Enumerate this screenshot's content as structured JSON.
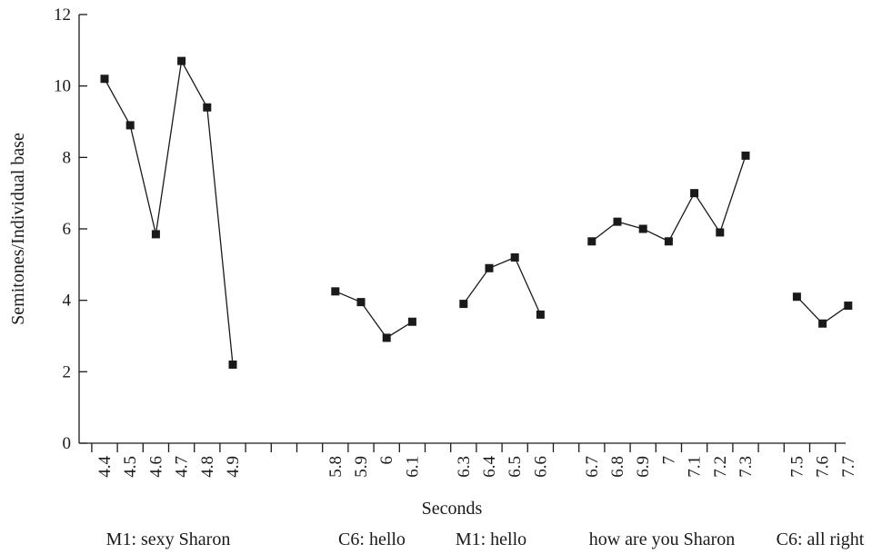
{
  "chart_data": {
    "type": "line",
    "xlabel": "Seconds",
    "ylabel": "Semitones/Individual base",
    "ylim": [
      0,
      12
    ],
    "yticks": [
      "0",
      "2",
      "4",
      "6",
      "8",
      "10",
      "12"
    ],
    "x_categories": [
      "4.4",
      "4.5",
      "4.6",
      "4.7",
      "4.8",
      "4.9",
      "",
      "",
      "",
      "5.8",
      "5.9",
      "6",
      "6.1",
      "",
      "6.3",
      "6.4",
      "6.5",
      "6.6",
      "",
      "6.7",
      "6.8",
      "6.9",
      "7",
      "7.1",
      "7.2",
      "7.3",
      "",
      "7.5",
      "7.6",
      "7.7"
    ],
    "segments": [
      {
        "points": [
          {
            "x": "4.4",
            "y": 10.2
          },
          {
            "x": "4.5",
            "y": 8.9
          },
          {
            "x": "4.6",
            "y": 5.85
          },
          {
            "x": "4.7",
            "y": 10.7
          },
          {
            "x": "4.8",
            "y": 9.4
          },
          {
            "x": "4.9",
            "y": 2.2
          }
        ]
      },
      {
        "points": [
          {
            "x": "5.8",
            "y": 4.25
          },
          {
            "x": "5.9",
            "y": 3.95
          },
          {
            "x": "6",
            "y": 2.95
          },
          {
            "x": "6.1",
            "y": 3.4
          }
        ]
      },
      {
        "points": [
          {
            "x": "6.3",
            "y": 3.9
          },
          {
            "x": "6.4",
            "y": 4.9
          },
          {
            "x": "6.5",
            "y": 5.2
          },
          {
            "x": "6.6",
            "y": 3.6
          }
        ]
      },
      {
        "points": [
          {
            "x": "6.7",
            "y": 5.65
          },
          {
            "x": "6.8",
            "y": 6.2
          },
          {
            "x": "6.9",
            "y": 6.0
          },
          {
            "x": "7",
            "y": 5.65
          },
          {
            "x": "7.1",
            "y": 7.0
          },
          {
            "x": "7.2",
            "y": 5.9
          },
          {
            "x": "7.3",
            "y": 8.05
          }
        ]
      },
      {
        "points": [
          {
            "x": "7.5",
            "y": 4.1
          },
          {
            "x": "7.6",
            "y": 3.35
          },
          {
            "x": "7.7",
            "y": 3.85
          }
        ]
      }
    ],
    "phrases": [
      {
        "text": "M1: sexy Sharon",
        "from": "4.4",
        "to": "4.9"
      },
      {
        "text": "C6: hello",
        "from": "5.8",
        "to": "6.1"
      },
      {
        "text": "M1: hello",
        "from": "6.3",
        "to": "6.6"
      },
      {
        "text": "how are you Sharon",
        "from": "6.7",
        "to": "7.3"
      },
      {
        "text": "C6: all right",
        "from": "7.5",
        "to": "7.7"
      }
    ]
  }
}
